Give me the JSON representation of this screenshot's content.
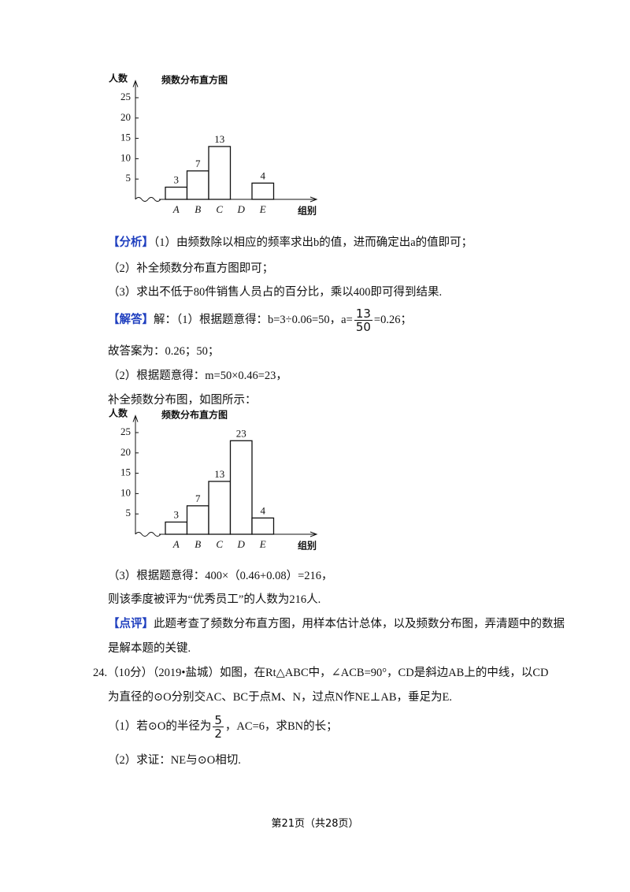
{
  "chart_data": [
    {
      "type": "bar",
      "title": "频数分布直方图",
      "y_label": "人数",
      "x_label": "组别",
      "categories": [
        "A",
        "B",
        "C",
        "D",
        "E"
      ],
      "values": [
        3,
        7,
        13,
        null,
        4
      ],
      "color": "#ffffff",
      "ylim": [
        0,
        28
      ],
      "yticks": [
        5,
        10,
        15,
        20,
        25
      ]
    },
    {
      "type": "bar",
      "title": "频数分布直方图",
      "y_label": "人数",
      "x_label": "组别",
      "categories": [
        "A",
        "B",
        "C",
        "D",
        "E"
      ],
      "values": [
        3,
        7,
        13,
        23,
        4
      ],
      "color": "#ffffff",
      "ylim": [
        0,
        28
      ],
      "yticks": [
        5,
        10,
        15,
        20,
        25
      ]
    }
  ],
  "analysis": {
    "tag": "【分析】",
    "lines": [
      "（1）由频数除以相应的频率求出b的值，进而确定出a的值即可；",
      "（2）补全频数分布直方图即可；",
      "（3）求出不低于80件销售人员占的百分比，乘以400即可得到结果."
    ]
  },
  "solution": {
    "tag": "【解答】",
    "first": {
      "before": "解：（1）根据题意得：b=3÷0.06=50，a=",
      "num": "13",
      "den": "50",
      "after": "=0.26；"
    },
    "lines": [
      "故答案为：0.26；50；",
      "（2）根据题意得：m=50×0.46=23，",
      "补全频数分布图，如图所示："
    ],
    "after_chart": [
      "（3）根据题意得：400×（0.46+0.08）=216，",
      "则该季度被评为“优秀员工”的人数为216人."
    ]
  },
  "comment": {
    "tag": "【点评】",
    "lines": [
      "此题考查了频数分布直方图，用样本估计总体，以及频数分布图，弄清题中的数据",
      "是解本题的关键."
    ]
  },
  "question": {
    "lines": [
      "24.（10分）（2019•盐城）如图，在Rt△ABC中，∠ACB=90°，CD是斜边AB上的中线，以CD",
      "为直径的⊙O分别交AC、BC于点M、N，过点N作NE⊥AB，垂足为E."
    ],
    "part1": {
      "before": "（1）若⊙O的半径为",
      "num": "5",
      "den": "2",
      "after": "，AC=6，求BN的长；"
    },
    "part2": "（2）求证：NE与⊙O相切."
  },
  "footer": "第21页（共28页）"
}
